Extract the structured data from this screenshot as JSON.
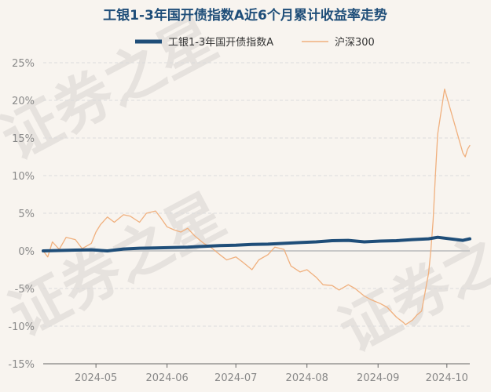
{
  "chart_data": {
    "type": "line",
    "title": "工银1-3年国开债指数A近6个月累计收益率走势",
    "watermark": [
      "证券之星",
      "证券之星",
      "证券之星"
    ],
    "x_ticks": [
      "2024-05",
      "2024-06",
      "2024-07",
      "2024-08",
      "2024-09",
      "2024-10"
    ],
    "x_tick_dates": [
      "2024-05-01",
      "2024-06-01",
      "2024-07-01",
      "2024-08-01",
      "2024-09-01",
      "2024-10-01"
    ],
    "x_range": [
      "2024-04-08",
      "2024-10-11"
    ],
    "y_ticks": [
      25,
      20,
      15,
      10,
      5,
      0,
      -5,
      -10,
      -15
    ],
    "y_tick_labels": [
      "25%",
      "20%",
      "15%",
      "10%",
      "5%",
      "0%",
      "-5%",
      "-10%",
      "-15%"
    ],
    "ylim": [
      -15,
      25
    ],
    "grid": "horizontal-dashed",
    "legend_position": "top-center",
    "series": [
      {
        "name": "工银1-3年国开债指数A",
        "color": "#1f4e79",
        "style": "thick",
        "points": [
          [
            "2024-04-08",
            0.0
          ],
          [
            "2024-04-15",
            0.05
          ],
          [
            "2024-04-22",
            0.1
          ],
          [
            "2024-04-29",
            0.15
          ],
          [
            "2024-05-06",
            0.0
          ],
          [
            "2024-05-13",
            0.25
          ],
          [
            "2024-05-20",
            0.35
          ],
          [
            "2024-05-27",
            0.4
          ],
          [
            "2024-06-03",
            0.45
          ],
          [
            "2024-06-10",
            0.5
          ],
          [
            "2024-06-17",
            0.6
          ],
          [
            "2024-06-24",
            0.7
          ],
          [
            "2024-07-01",
            0.75
          ],
          [
            "2024-07-08",
            0.85
          ],
          [
            "2024-07-15",
            0.9
          ],
          [
            "2024-07-22",
            1.0
          ],
          [
            "2024-07-29",
            1.1
          ],
          [
            "2024-08-05",
            1.2
          ],
          [
            "2024-08-12",
            1.35
          ],
          [
            "2024-08-19",
            1.4
          ],
          [
            "2024-08-26",
            1.2
          ],
          [
            "2024-09-02",
            1.3
          ],
          [
            "2024-09-09",
            1.35
          ],
          [
            "2024-09-16",
            1.5
          ],
          [
            "2024-09-23",
            1.6
          ],
          [
            "2024-09-27",
            1.8
          ],
          [
            "2024-10-08",
            1.4
          ],
          [
            "2024-10-11",
            1.6
          ]
        ]
      },
      {
        "name": "沪深300",
        "color": "#f0b07e",
        "style": "thin",
        "points": [
          [
            "2024-04-08",
            0.0
          ],
          [
            "2024-04-10",
            -0.8
          ],
          [
            "2024-04-12",
            1.2
          ],
          [
            "2024-04-15",
            0.2
          ],
          [
            "2024-04-18",
            1.8
          ],
          [
            "2024-04-22",
            1.5
          ],
          [
            "2024-04-25",
            0.3
          ],
          [
            "2024-04-29",
            1.0
          ],
          [
            "2024-05-01",
            2.5
          ],
          [
            "2024-05-03",
            3.5
          ],
          [
            "2024-05-06",
            4.5
          ],
          [
            "2024-05-09",
            3.8
          ],
          [
            "2024-05-13",
            4.8
          ],
          [
            "2024-05-16",
            4.6
          ],
          [
            "2024-05-20",
            3.8
          ],
          [
            "2024-05-23",
            5.0
          ],
          [
            "2024-05-27",
            5.3
          ],
          [
            "2024-05-29",
            4.5
          ],
          [
            "2024-06-01",
            3.2
          ],
          [
            "2024-06-04",
            2.8
          ],
          [
            "2024-06-07",
            2.5
          ],
          [
            "2024-06-10",
            3.0
          ],
          [
            "2024-06-13",
            2.0
          ],
          [
            "2024-06-17",
            1.0
          ],
          [
            "2024-06-20",
            0.5
          ],
          [
            "2024-06-24",
            -0.5
          ],
          [
            "2024-06-27",
            -1.2
          ],
          [
            "2024-07-01",
            -0.8
          ],
          [
            "2024-07-04",
            -1.5
          ],
          [
            "2024-07-08",
            -2.5
          ],
          [
            "2024-07-11",
            -1.2
          ],
          [
            "2024-07-15",
            -0.5
          ],
          [
            "2024-07-18",
            0.5
          ],
          [
            "2024-07-22",
            0.2
          ],
          [
            "2024-07-25",
            -2.0
          ],
          [
            "2024-07-29",
            -2.8
          ],
          [
            "2024-08-01",
            -2.5
          ],
          [
            "2024-08-05",
            -3.5
          ],
          [
            "2024-08-08",
            -4.5
          ],
          [
            "2024-08-12",
            -4.6
          ],
          [
            "2024-08-15",
            -5.2
          ],
          [
            "2024-08-19",
            -4.5
          ],
          [
            "2024-08-22",
            -5.0
          ],
          [
            "2024-08-26",
            -6.0
          ],
          [
            "2024-08-29",
            -6.5
          ],
          [
            "2024-09-02",
            -7.0
          ],
          [
            "2024-09-05",
            -7.5
          ],
          [
            "2024-09-09",
            -8.8
          ],
          [
            "2024-09-12",
            -9.5
          ],
          [
            "2024-09-13",
            -9.8
          ],
          [
            "2024-09-16",
            -9.2
          ],
          [
            "2024-09-18",
            -8.5
          ],
          [
            "2024-09-20",
            -8.0
          ],
          [
            "2024-09-23",
            -3.0
          ],
          [
            "2024-09-24",
            0.0
          ],
          [
            "2024-09-25",
            4.0
          ],
          [
            "2024-09-26",
            10.0
          ],
          [
            "2024-09-27",
            15.5
          ],
          [
            "2024-09-30",
            21.5
          ],
          [
            "2024-10-08",
            13.0
          ],
          [
            "2024-10-09",
            12.5
          ],
          [
            "2024-10-10",
            13.5
          ],
          [
            "2024-10-11",
            14.0
          ]
        ]
      }
    ]
  }
}
